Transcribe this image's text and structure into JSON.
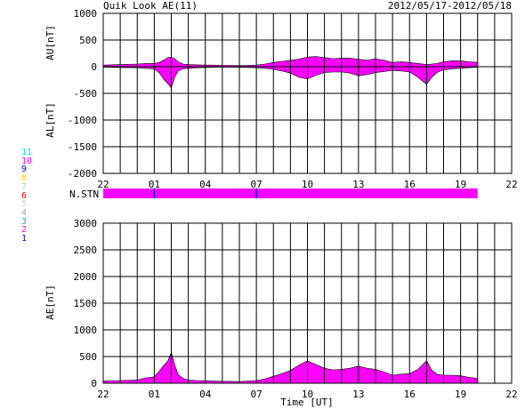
{
  "header": {
    "title": "Quik Look AE(11)",
    "date_range": "2012/05/17-2012/05/18"
  },
  "colors": {
    "fill": "#ff00ff",
    "axis": "#000000",
    "marker": "#0000cc"
  },
  "station_legend": [
    {
      "label": "11",
      "color": "#00e5ee"
    },
    {
      "label": "10",
      "color": "#ff00ff"
    },
    {
      "label": "9",
      "color": "#0000ff"
    },
    {
      "label": "8",
      "color": "#ffd700"
    },
    {
      "label": "7",
      "color": "#90ee90"
    },
    {
      "label": "6",
      "color": "#ff0000"
    },
    {
      "label": "5",
      "color": "#d3d3d3"
    },
    {
      "label": "4",
      "color": "#a0a0a0"
    },
    {
      "label": "3",
      "color": "#20b2aa"
    },
    {
      "label": "2",
      "color": "#ff00ff"
    },
    {
      "label": "1",
      "color": "#0000ff"
    }
  ],
  "n_stn_label": "N.STN",
  "chart_data": [
    {
      "type": "area",
      "name": "AU/AL",
      "ylabel_upper": "AU[nT]",
      "ylabel_lower": "AL[nT]",
      "ylim": [
        -2000,
        1000
      ],
      "yticks": [
        "1000",
        "500",
        "0",
        "-500",
        "-1000",
        "-1500",
        "-2000"
      ],
      "ytick_values": [
        1000,
        500,
        0,
        -500,
        -1000,
        -1500,
        -2000
      ],
      "xlim": [
        -2,
        22
      ],
      "x_tick_hours": [
        -2,
        1,
        4,
        7,
        10,
        13,
        16,
        19,
        22
      ],
      "x_tick_labels": [
        "22",
        "01",
        "04",
        "07",
        "10",
        "13",
        "16",
        "19",
        "22"
      ],
      "grid": true,
      "x_hours": [
        -2,
        -1,
        0,
        0.5,
        1,
        1.3,
        1.6,
        1.8,
        2,
        2.2,
        2.4,
        2.7,
        3,
        3.5,
        4,
        4.5,
        5,
        5.5,
        6,
        6.5,
        7,
        7.5,
        8,
        8.5,
        9,
        9.5,
        10,
        10.5,
        11,
        11.5,
        12,
        12.5,
        13,
        13.5,
        14,
        14.5,
        15,
        15.5,
        16,
        16.5,
        17,
        17.3,
        17.6,
        18,
        18.5,
        19,
        19.5,
        20
      ],
      "au": [
        30,
        40,
        50,
        60,
        60,
        80,
        130,
        170,
        180,
        150,
        90,
        50,
        40,
        35,
        30,
        30,
        25,
        25,
        20,
        25,
        30,
        50,
        80,
        100,
        120,
        140,
        180,
        190,
        170,
        150,
        160,
        160,
        140,
        120,
        150,
        120,
        80,
        90,
        80,
        60,
        40,
        50,
        60,
        90,
        110,
        110,
        90,
        80
      ],
      "al": [
        -10,
        -15,
        -20,
        -30,
        -40,
        -120,
        -250,
        -320,
        -400,
        -200,
        -80,
        -40,
        -30,
        -20,
        -15,
        -10,
        -10,
        -10,
        -10,
        -15,
        -20,
        -30,
        -50,
        -80,
        -120,
        -200,
        -230,
        -160,
        -110,
        -100,
        -100,
        -120,
        -170,
        -150,
        -110,
        -90,
        -70,
        -80,
        -100,
        -200,
        -330,
        -200,
        -110,
        -60,
        -40,
        -30,
        -20,
        -10
      ]
    },
    {
      "type": "area",
      "name": "AE",
      "ylabel": "AE[nT]",
      "xlabel": "Time [UT]",
      "ylim": [
        0,
        3000
      ],
      "yticks": [
        "3000",
        "2500",
        "2000",
        "1500",
        "1000",
        "500",
        "0"
      ],
      "ytick_values": [
        3000,
        2500,
        2000,
        1500,
        1000,
        500,
        0
      ],
      "xlim": [
        -2,
        22
      ],
      "x_tick_hours": [
        -2,
        1,
        4,
        7,
        10,
        13,
        16,
        19,
        22
      ],
      "x_tick_labels": [
        "22",
        "01",
        "04",
        "07",
        "10",
        "13",
        "16",
        "19",
        "22"
      ],
      "grid": true,
      "x_hours": [
        -2,
        -1,
        0,
        0.5,
        1,
        1.3,
        1.6,
        1.8,
        2,
        2.2,
        2.4,
        2.7,
        3,
        3.5,
        4,
        4.5,
        5,
        5.5,
        6,
        6.5,
        7,
        7.5,
        8,
        8.5,
        9,
        9.5,
        10,
        10.5,
        11,
        11.5,
        12,
        12.5,
        13,
        13.5,
        14,
        14.5,
        15,
        15.5,
        16,
        16.5,
        17,
        17.3,
        17.6,
        18,
        18.5,
        19,
        19.5,
        20
      ],
      "values": [
        40,
        50,
        60,
        100,
        120,
        230,
        350,
        420,
        580,
        350,
        160,
        90,
        60,
        50,
        45,
        40,
        35,
        35,
        30,
        40,
        50,
        80,
        130,
        180,
        240,
        340,
        420,
        350,
        280,
        250,
        260,
        280,
        320,
        280,
        260,
        210,
        150,
        170,
        180,
        260,
        420,
        250,
        170,
        150,
        150,
        140,
        110,
        90
      ]
    }
  ],
  "n_stn": {
    "x_start_hour": -2,
    "x_end_hour": 20,
    "markers_hours": [
      1,
      7
    ]
  }
}
